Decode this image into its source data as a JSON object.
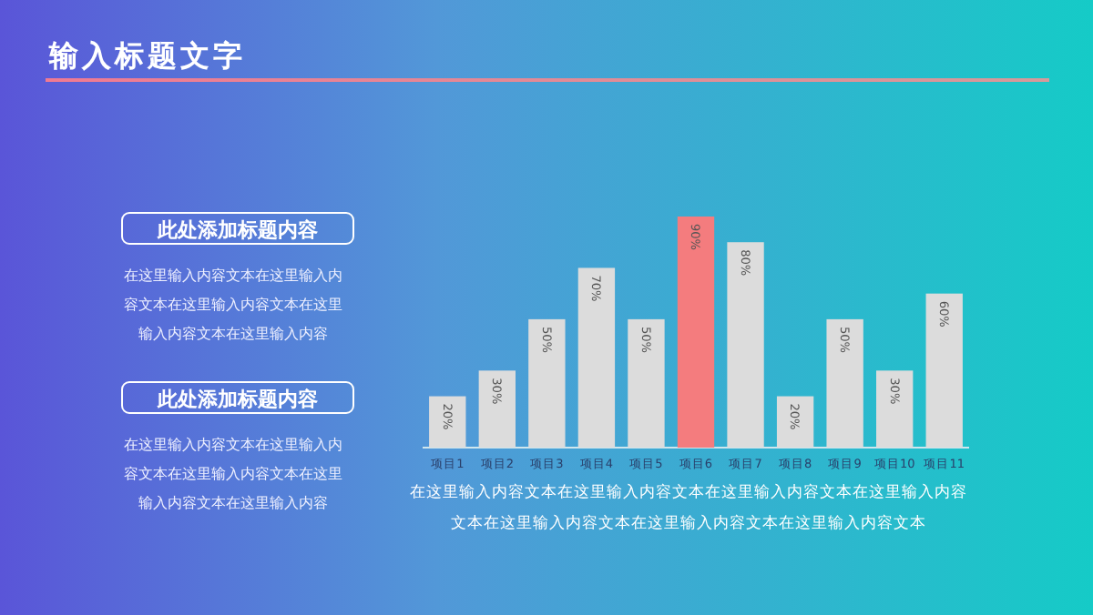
{
  "chart_data": {
    "type": "bar",
    "title": "输入标题文字",
    "categories": [
      "项目1",
      "项目2",
      "项目3",
      "项目4",
      "项目5",
      "项目6",
      "项目7",
      "项目8",
      "项目9",
      "项目10",
      "项目11"
    ],
    "values": [
      20,
      30,
      50,
      70,
      50,
      90,
      80,
      20,
      50,
      30,
      60
    ],
    "value_labels": [
      "20%",
      "30%",
      "50%",
      "70%",
      "50%",
      "90%",
      "80%",
      "20%",
      "50%",
      "30%",
      "60%"
    ],
    "colors": [
      "#dcdcdc",
      "#dcdcdc",
      "#dcdcdc",
      "#dcdcdc",
      "#dcdcdc",
      "#f47c7e",
      "#dcdcdc",
      "#dcdcdc",
      "#dcdcdc",
      "#dcdcdc",
      "#dcdcdc"
    ],
    "annotations": [
      "此处添加标题内容",
      "在这里输入内容文本在这里输入内容文本在这里输入内容文本在这里输入内容文本在这里输入内容",
      "此处添加标题内容",
      "在这里输入内容文本在这里输入内容文本在这里输入内容文本在这里输入内容文本在这里输入内容",
      "在这里输入内容文本在这里输入内容文本在这里输入内容文本在这里输入内容文本在这里输入内容文本在这里输入内容文本在这里输入内容文本"
    ]
  }
}
